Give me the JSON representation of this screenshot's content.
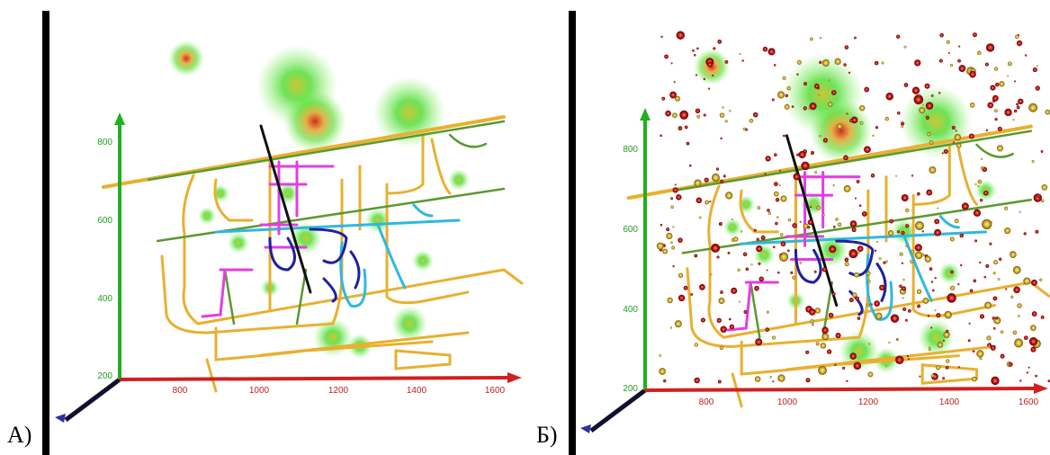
{
  "panels": [
    {
      "label": "А)",
      "yticks": [
        "800",
        "600",
        "400",
        "200"
      ],
      "xticks": [
        "800",
        "1000",
        "1200",
        "1400",
        "1600"
      ]
    },
    {
      "label": "Б)",
      "yticks": [
        "800",
        "600",
        "400",
        "200"
      ],
      "xticks": [
        "800",
        "1000",
        "1200",
        "1400",
        "1600"
      ]
    }
  ]
}
